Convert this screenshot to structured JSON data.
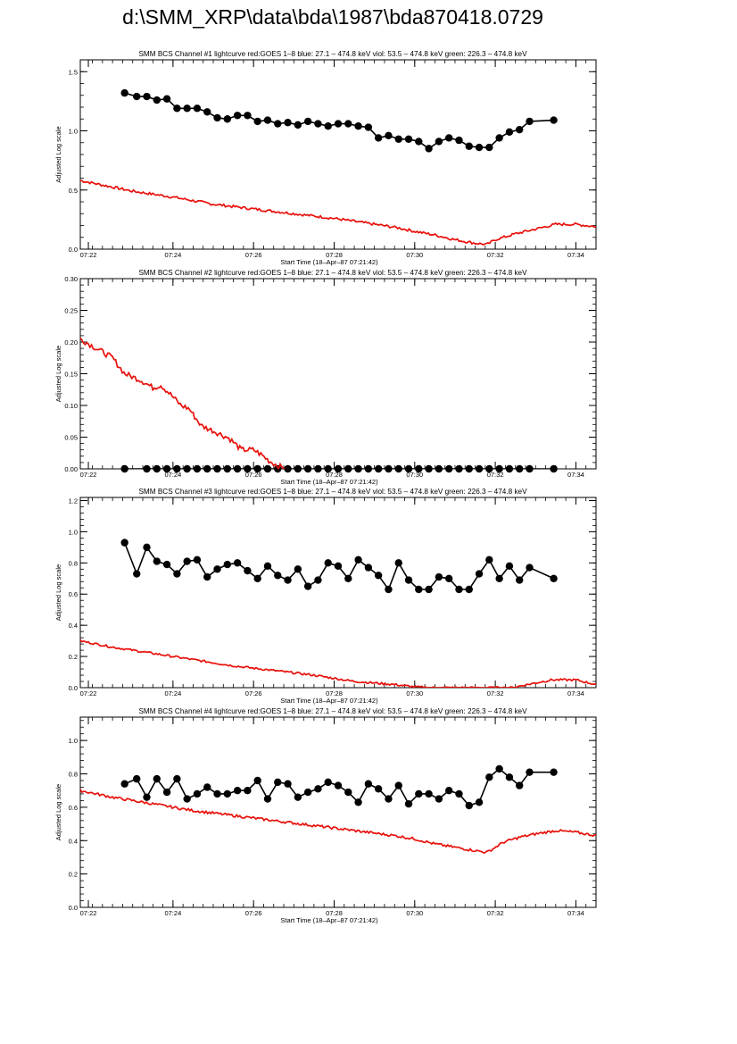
{
  "window_title": "d:\\SMM_XRP\\data\\bda\\1987\\bda870418.0729",
  "colors": {
    "red": "#e8100a",
    "black": "#000000",
    "frame": "#000000"
  },
  "chart_data": [
    {
      "type": "line",
      "title": "SMM BCS Channel #1 lightcurve  red:GOES 1–8  blue: 27.1 – 474.8 keV  viol: 53.5 – 474.8 keV  green: 226.3 – 474.8 keV",
      "xlabel": "Start Time (18–Apr–87 07:21:42)",
      "ylabel": "Adjusted Log scale",
      "x_ticks": [
        "07:22",
        "07:24",
        "07:26",
        "07:28",
        "07:30",
        "07:32",
        "07:34"
      ],
      "x_tick_min": [
        21.7,
        34.3
      ],
      "xlim_min": [
        21.7,
        34.5
      ],
      "ylim": [
        0,
        1.6
      ],
      "y_ticks": [
        "0.0",
        "0.5",
        "1.0",
        "1.5"
      ],
      "y_tick_values": [
        0,
        0.5,
        1.0,
        1.5
      ],
      "series": [
        {
          "color": "black",
          "markers": true,
          "x": [
            22.8,
            23.1,
            23.35,
            23.6,
            23.85,
            24.1,
            24.35,
            24.6,
            24.85,
            25.1,
            25.35,
            25.6,
            25.85,
            26.1,
            26.35,
            26.6,
            26.85,
            27.1,
            27.35,
            27.6,
            27.85,
            28.1,
            28.35,
            28.6,
            28.85,
            29.1,
            29.35,
            29.6,
            29.85,
            30.1,
            30.35,
            30.6,
            30.85,
            31.1,
            31.35,
            31.6,
            31.85,
            32.1,
            32.35,
            32.6,
            32.85,
            33.45
          ],
          "y": [
            1.32,
            1.29,
            1.29,
            1.26,
            1.27,
            1.19,
            1.19,
            1.19,
            1.16,
            1.11,
            1.1,
            1.13,
            1.13,
            1.08,
            1.09,
            1.06,
            1.07,
            1.05,
            1.08,
            1.06,
            1.04,
            1.06,
            1.06,
            1.04,
            1.03,
            0.94,
            0.96,
            0.93,
            0.93,
            0.91,
            0.85,
            0.91,
            0.94,
            0.92,
            0.87,
            0.86,
            0.86,
            0.94,
            0.99,
            1.01,
            1.08,
            1.09
          ]
        },
        {
          "color": "red",
          "markers": false,
          "noise": 0.01,
          "x": [
            21.7,
            23.0,
            24.0,
            25.0,
            26.0,
            27.0,
            28.0,
            29.0,
            29.6,
            30.0,
            30.5,
            31.0,
            31.5,
            31.8,
            32.0,
            32.5,
            33.0,
            33.5,
            34.0,
            34.5
          ],
          "y": [
            0.58,
            0.49,
            0.44,
            0.38,
            0.34,
            0.3,
            0.26,
            0.21,
            0.18,
            0.15,
            0.12,
            0.08,
            0.05,
            0.04,
            0.08,
            0.13,
            0.17,
            0.21,
            0.21,
            0.19
          ]
        }
      ]
    },
    {
      "type": "line",
      "title": "SMM BCS Channel #2 lightcurve  red:GOES 1–8  blue: 27.1 – 474.8 keV  viol: 53.5 – 474.8 keV  green: 226.3 – 474.8 keV",
      "xlabel": "Start Time (18–Apr–87 07:21:42)",
      "ylabel": "Adjusted Log scale",
      "x_ticks": [
        "07:22",
        "07:24",
        "07:26",
        "07:28",
        "07:30",
        "07:32",
        "07:34"
      ],
      "ylim": [
        0,
        0.3
      ],
      "y_ticks": [
        "0.00",
        "0.05",
        "0.10",
        "0.15",
        "0.20",
        "0.25",
        "0.30"
      ],
      "y_tick_values": [
        0,
        0.05,
        0.1,
        0.15,
        0.2,
        0.25,
        0.3
      ],
      "series": [
        {
          "color": "black",
          "markers": true,
          "x": [
            22.8,
            23.35,
            23.6,
            23.85,
            24.1,
            24.35,
            24.6,
            24.85,
            25.1,
            25.35,
            25.6,
            25.85,
            26.1,
            26.35,
            26.6,
            26.85,
            27.1,
            27.35,
            27.6,
            27.85,
            28.1,
            28.35,
            28.6,
            28.85,
            29.1,
            29.35,
            29.6,
            29.85,
            30.1,
            30.35,
            30.6,
            30.85,
            31.1,
            31.35,
            31.6,
            31.85,
            32.1,
            32.35,
            32.6,
            32.85,
            33.45
          ],
          "y": [
            0.0,
            0.0,
            0.0,
            0.0,
            0.0,
            0.0,
            0.0,
            0.0,
            0.0,
            0.0,
            0.0,
            0.0,
            0.0,
            0.0,
            0.0,
            0.0,
            0.0,
            0.0,
            0.0,
            0.0,
            0.0,
            0.0,
            0.0,
            0.0,
            0.0,
            0.0,
            0.0,
            0.0,
            0.0,
            0.0,
            0.0,
            0.0,
            0.0,
            0.0,
            0.0,
            0.0,
            0.0,
            0.0,
            0.0,
            0.0,
            0.0
          ]
        },
        {
          "color": "red",
          "markers": false,
          "noise": 0.004,
          "x": [
            21.7,
            22.1,
            22.5,
            22.8,
            23.2,
            23.5,
            23.7,
            23.9,
            24.2,
            24.4,
            24.7,
            25.0,
            25.4,
            25.7,
            26.0,
            26.2,
            26.4,
            26.6,
            26.8
          ],
          "y": [
            0.205,
            0.19,
            0.175,
            0.15,
            0.14,
            0.128,
            0.132,
            0.12,
            0.1,
            0.095,
            0.068,
            0.06,
            0.048,
            0.03,
            0.03,
            0.022,
            0.012,
            0.005,
            0.0
          ]
        }
      ]
    },
    {
      "type": "line",
      "title": "SMM BCS Channel #3 lightcurve  red:GOES 1–8  blue: 27.1 – 474.8 keV  viol: 53.5 – 474.8 keV  green: 226.3 – 474.8 keV",
      "xlabel": "Start Time (18–Apr–87 07:21:42)",
      "ylabel": "Adjusted Log scale",
      "x_ticks": [
        "07:22",
        "07:24",
        "07:26",
        "07:28",
        "07:30",
        "07:32",
        "07:34"
      ],
      "ylim": [
        0,
        1.22
      ],
      "y_ticks": [
        "0.0",
        "0.2",
        "0.4",
        "0.6",
        "0.8",
        "1.0",
        "1.2"
      ],
      "y_tick_values": [
        0,
        0.2,
        0.4,
        0.6,
        0.8,
        1.0,
        1.2
      ],
      "series": [
        {
          "color": "black",
          "markers": true,
          "x": [
            22.8,
            23.1,
            23.35,
            23.6,
            23.85,
            24.1,
            24.35,
            24.6,
            24.85,
            25.1,
            25.35,
            25.6,
            25.85,
            26.1,
            26.35,
            26.6,
            26.85,
            27.1,
            27.35,
            27.6,
            27.85,
            28.1,
            28.35,
            28.6,
            28.85,
            29.1,
            29.35,
            29.6,
            29.85,
            30.1,
            30.35,
            30.6,
            30.85,
            31.1,
            31.35,
            31.6,
            31.85,
            32.1,
            32.35,
            32.6,
            32.85,
            33.45
          ],
          "y": [
            0.93,
            0.73,
            0.9,
            0.81,
            0.79,
            0.73,
            0.81,
            0.82,
            0.71,
            0.76,
            0.79,
            0.8,
            0.75,
            0.7,
            0.78,
            0.72,
            0.69,
            0.76,
            0.65,
            0.69,
            0.8,
            0.78,
            0.7,
            0.82,
            0.77,
            0.72,
            0.63,
            0.8,
            0.69,
            0.63,
            0.63,
            0.71,
            0.7,
            0.63,
            0.63,
            0.73,
            0.82,
            0.7,
            0.78,
            0.69,
            0.77,
            0.7
          ]
        },
        {
          "color": "red",
          "markers": false,
          "noise": 0.006,
          "x": [
            21.7,
            22.5,
            23.5,
            24.5,
            25.5,
            26.5,
            27.5,
            28.5,
            29.5,
            30.0,
            30.4,
            32.4,
            32.8,
            33.4,
            34.0,
            34.5
          ],
          "y": [
            0.3,
            0.26,
            0.22,
            0.18,
            0.14,
            0.11,
            0.08,
            0.04,
            0.02,
            0.005,
            0.0,
            0.0,
            0.02,
            0.05,
            0.05,
            0.02
          ]
        }
      ]
    },
    {
      "type": "line",
      "title": "SMM BCS Channel #4 lightcurve  red:GOES 1–8  blue: 27.1 – 474.8 keV  viol: 53.5 – 474.8 keV  green: 226.3 – 474.8 keV",
      "xlabel": "Start Time (18–Apr–87 07:21:42)",
      "ylabel": "Adjusted Log scale",
      "x_ticks": [
        "07:22",
        "07:24",
        "07:26",
        "07:28",
        "07:30",
        "07:32",
        "07:34"
      ],
      "ylim": [
        0,
        1.14
      ],
      "y_ticks": [
        "0.0",
        "0.2",
        "0.4",
        "0.6",
        "0.8",
        "1.0"
      ],
      "y_tick_values": [
        0,
        0.2,
        0.4,
        0.6,
        0.8,
        1.0
      ],
      "series": [
        {
          "color": "black",
          "markers": true,
          "x": [
            22.8,
            23.1,
            23.35,
            23.6,
            23.85,
            24.1,
            24.35,
            24.6,
            24.85,
            25.1,
            25.35,
            25.6,
            25.85,
            26.1,
            26.35,
            26.6,
            26.85,
            27.1,
            27.35,
            27.6,
            27.85,
            28.1,
            28.35,
            28.6,
            28.85,
            29.1,
            29.35,
            29.6,
            29.85,
            30.1,
            30.35,
            30.6,
            30.85,
            31.1,
            31.35,
            31.6,
            31.85,
            32.1,
            32.35,
            32.6,
            32.85,
            33.45
          ],
          "y": [
            0.74,
            0.77,
            0.66,
            0.77,
            0.69,
            0.77,
            0.65,
            0.68,
            0.72,
            0.68,
            0.68,
            0.7,
            0.7,
            0.76,
            0.65,
            0.75,
            0.74,
            0.66,
            0.69,
            0.71,
            0.75,
            0.73,
            0.69,
            0.63,
            0.74,
            0.71,
            0.65,
            0.73,
            0.62,
            0.68,
            0.68,
            0.65,
            0.7,
            0.68,
            0.61,
            0.63,
            0.78,
            0.83,
            0.78,
            0.73,
            0.81,
            0.81
          ]
        },
        {
          "color": "red",
          "markers": false,
          "noise": 0.007,
          "x": [
            21.7,
            22.5,
            23.5,
            24.5,
            25.5,
            26.5,
            27.5,
            28.5,
            29.5,
            30.0,
            30.5,
            31.0,
            31.5,
            31.8,
            32.2,
            32.6,
            33.0,
            33.5,
            34.0,
            34.5
          ],
          "y": [
            0.7,
            0.66,
            0.62,
            0.58,
            0.55,
            0.52,
            0.49,
            0.46,
            0.43,
            0.41,
            0.38,
            0.36,
            0.34,
            0.33,
            0.39,
            0.42,
            0.44,
            0.46,
            0.45,
            0.43
          ]
        }
      ]
    }
  ]
}
